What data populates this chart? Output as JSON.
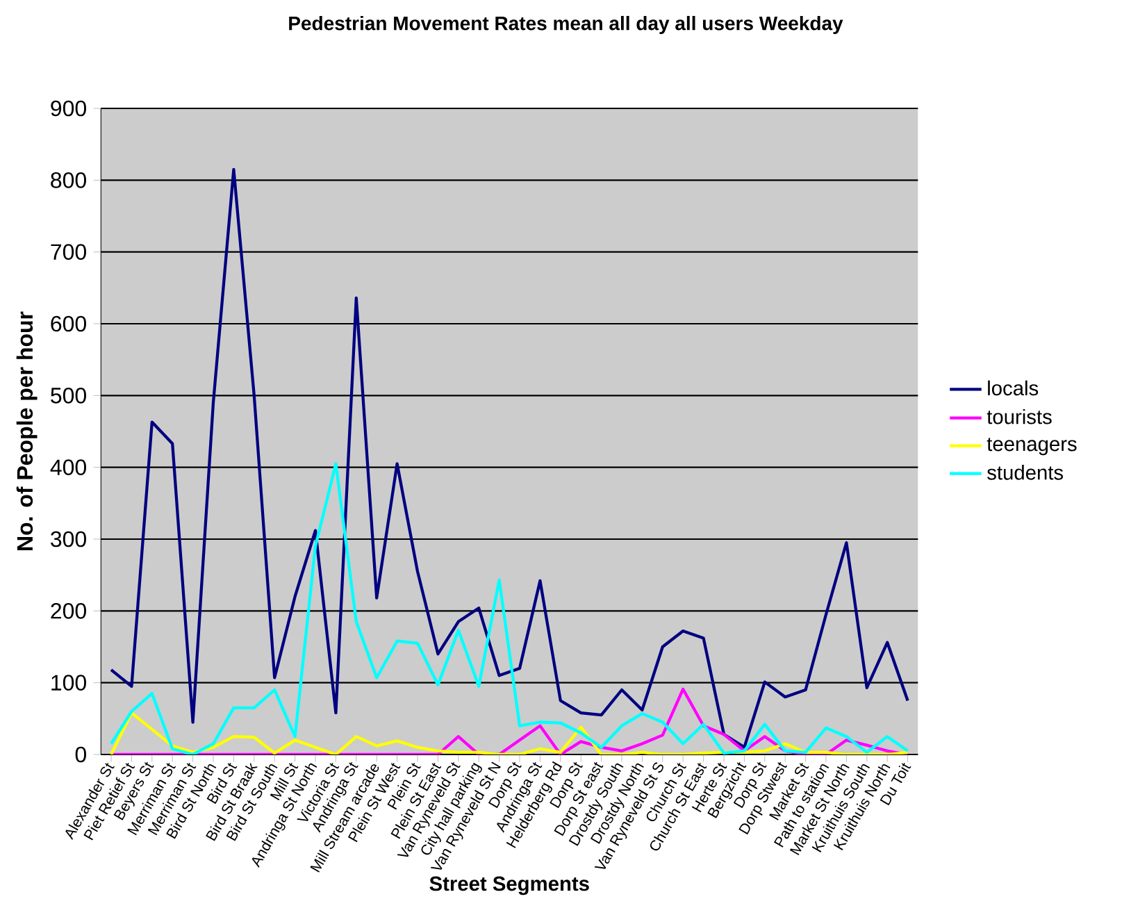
{
  "chart_data": {
    "type": "line",
    "title": "Pedestrian Movement Rates mean all day all users Weekday",
    "xlabel": "Street Segments",
    "ylabel": "No. of People per hour",
    "categories": [
      "Alexander St",
      "Piet Retief St",
      "Beyers St",
      "Merriman St",
      "Merriman St",
      "Bird St North",
      "Bird St",
      "Bird St Braak",
      "Bird St South",
      "Mill St",
      "Andringa St North",
      "Victoria St",
      "Andringa St",
      "Mill Stream arcade",
      "Plein St West",
      "Plein St",
      "Plein St East",
      "Van Ryneveld St",
      "City hall parking",
      "Van Ryneveld St N",
      "Dorp St",
      "Andringa St",
      "Helderberg Rd",
      "Dorp St",
      "Dorp St east",
      "Drostdy South",
      "Drostdy North",
      "Van Ryneveld St S",
      "Church St",
      "Church St East",
      "Herte St",
      "Bergzicht",
      "Dorp St",
      "Dorp Stwest",
      "Market St",
      "Path to station",
      "Market St North",
      "Kruithuis South",
      "Kruithuis North",
      "Du Toit"
    ],
    "series": [
      {
        "name": "locals",
        "color": "#000080",
        "values": [
          118,
          95,
          463,
          433,
          45,
          490,
          815,
          500,
          107,
          220,
          312,
          58,
          636,
          218,
          405,
          255,
          140,
          185,
          204,
          110,
          120,
          242,
          75,
          58,
          55,
          90,
          62,
          150,
          172,
          162,
          28,
          10,
          101,
          80,
          90,
          195,
          295,
          93,
          156,
          75
        ]
      },
      {
        "name": "tourists",
        "color": "#ff00ff",
        "values": [
          0,
          0,
          0,
          0,
          0,
          0,
          0,
          0,
          0,
          0,
          0,
          0,
          0,
          0,
          0,
          0,
          0,
          25,
          0,
          0,
          20,
          40,
          0,
          18,
          10,
          5,
          15,
          27,
          91,
          40,
          28,
          5,
          25,
          5,
          0,
          0,
          20,
          13,
          5,
          0
        ]
      },
      {
        "name": "teenagers",
        "color": "#ffff00",
        "values": [
          0,
          58,
          35,
          12,
          3,
          10,
          25,
          24,
          2,
          20,
          10,
          0,
          25,
          12,
          19,
          10,
          5,
          3,
          3,
          0,
          0,
          8,
          3,
          38,
          0,
          0,
          3,
          0,
          0,
          2,
          3,
          3,
          5,
          15,
          3,
          3,
          0,
          0,
          0,
          3
        ]
      },
      {
        "name": "students",
        "color": "#00ffff",
        "values": [
          15,
          60,
          85,
          8,
          0,
          15,
          65,
          65,
          90,
          25,
          290,
          405,
          185,
          107,
          158,
          155,
          97,
          173,
          95,
          243,
          40,
          45,
          44,
          30,
          10,
          40,
          57,
          45,
          15,
          42,
          2,
          5,
          42,
          5,
          3,
          37,
          25,
          3,
          25,
          5
        ]
      }
    ],
    "ylim": [
      0,
      900
    ],
    "yticks": [
      0,
      100,
      200,
      300,
      400,
      500,
      600,
      700,
      800,
      900
    ],
    "grid": "y",
    "legend": "right"
  }
}
